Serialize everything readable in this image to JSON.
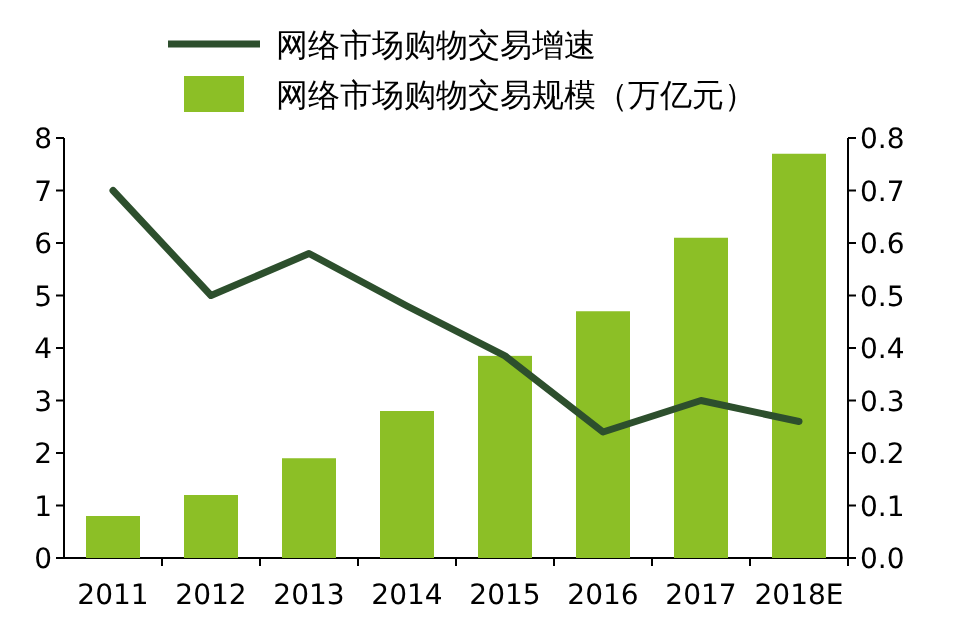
{
  "chart_data": {
    "type": "bar",
    "categories": [
      "2011",
      "2012",
      "2013",
      "2014",
      "2015",
      "2016",
      "2017",
      "2018E"
    ],
    "series": [
      {
        "name": "网络市场购物交易增速",
        "type": "line",
        "axis": "y2",
        "color": "#2d4f2d",
        "values": [
          0.7,
          0.5,
          0.58,
          0.48,
          0.385,
          0.24,
          0.3,
          0.26
        ]
      },
      {
        "name": "网络市场购物交易规模（万亿元）",
        "color": "#8cbf26",
        "values": [
          0.8,
          1.2,
          1.9,
          2.8,
          3.85,
          4.7,
          6.1,
          7.7
        ]
      }
    ],
    "ylim": [
      0,
      8
    ],
    "yticks": [
      0,
      1,
      2,
      3,
      4,
      5,
      6,
      7,
      8
    ],
    "y2lim": [
      0,
      0.8
    ],
    "y2ticks": [
      {
        "value": 0,
        "label": "0.0"
      },
      0.1,
      0.2,
      0.3,
      0.4,
      0.5,
      0.6,
      0.7,
      0.8
    ],
    "legend": "top",
    "grid": false
  }
}
